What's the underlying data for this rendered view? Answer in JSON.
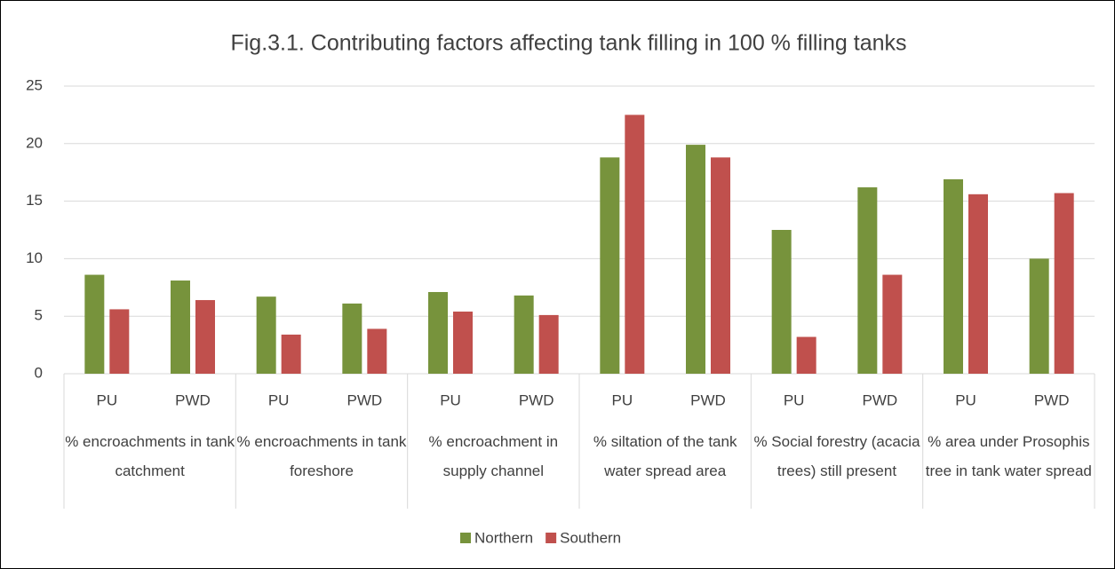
{
  "chart_data": {
    "type": "bar",
    "title": "Fig.3.1. Contributing factors affecting tank filling in 100 % filling tanks",
    "categories": [
      "PU",
      "PWD",
      "PU",
      "PWD",
      "PU",
      "PWD",
      "PU",
      "PWD",
      "PU",
      "PWD",
      "PU",
      "PWD"
    ],
    "groups": [
      "% encroachments in tank catchment",
      "% encroachments in tank foreshore",
      "% encroachment in supply channel",
      "% siltation of the tank water spread area",
      "% Social forestry (acacia trees) still present",
      "% area under Prosophis tree in tank water spread"
    ],
    "series": [
      {
        "name": "Northern",
        "color": "#77933c",
        "values": [
          8.6,
          8.1,
          6.7,
          6.1,
          7.1,
          6.8,
          18.8,
          19.9,
          12.5,
          16.2,
          16.9,
          10.0
        ]
      },
      {
        "name": "Southern",
        "color": "#c0504d",
        "values": [
          5.6,
          6.4,
          3.4,
          3.9,
          5.4,
          5.1,
          22.5,
          18.8,
          3.2,
          8.6,
          15.6,
          15.7
        ]
      }
    ],
    "ylim": [
      0,
      25
    ],
    "yticks": [
      0,
      5,
      10,
      15,
      20,
      25
    ],
    "grid": true,
    "legend": "bottom"
  }
}
